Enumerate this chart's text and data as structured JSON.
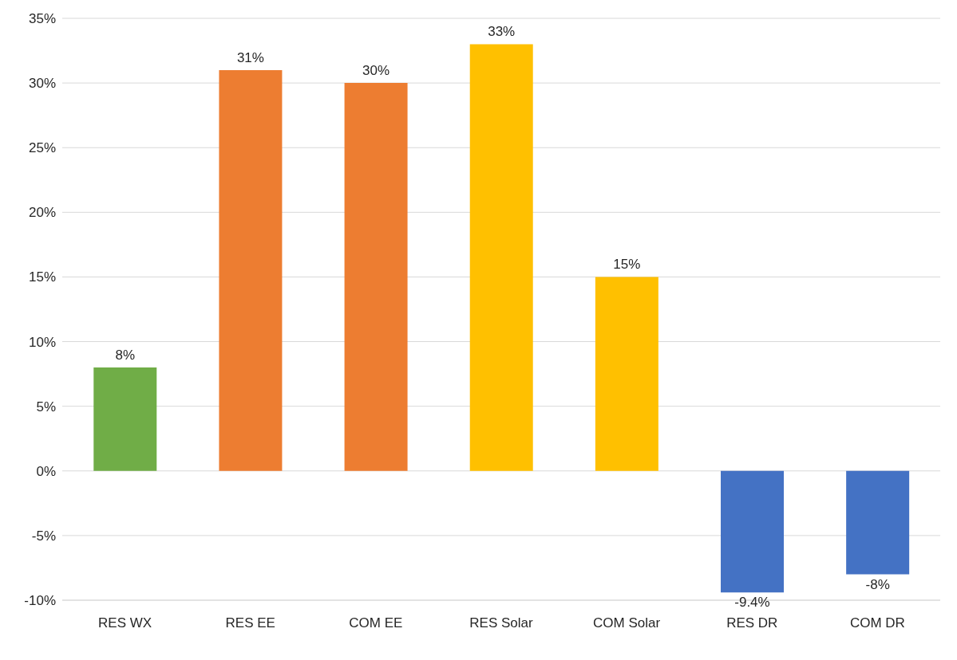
{
  "chart_data": {
    "type": "bar",
    "categories": [
      "RES WX",
      "RES EE",
      "COM EE",
      "RES Solar",
      "COM Solar",
      "RES DR",
      "COM DR"
    ],
    "values": [
      8,
      31,
      30,
      33,
      15,
      -9.4,
      -8
    ],
    "colors": [
      "#70ad47",
      "#ed7d31",
      "#ed7d31",
      "#ffc000",
      "#ffc000",
      "#4472c4",
      "#4472c4"
    ],
    "value_labels": [
      "8%",
      "31%",
      "30%",
      "33%",
      "15%",
      "-9.4%",
      "-8%"
    ],
    "ylim": [
      -10,
      35
    ],
    "yticks": [
      {
        "value": -10,
        "label": "-10%"
      },
      {
        "value": -5,
        "label": "-5%"
      },
      {
        "value": 0,
        "label": "0%"
      },
      {
        "value": 5,
        "label": "5%"
      },
      {
        "value": 10,
        "label": "10%"
      },
      {
        "value": 15,
        "label": "15%"
      },
      {
        "value": 20,
        "label": "20%"
      },
      {
        "value": 25,
        "label": "25%"
      },
      {
        "value": 30,
        "label": "30%"
      },
      {
        "value": 35,
        "label": "35%"
      }
    ],
    "grid": "y"
  }
}
